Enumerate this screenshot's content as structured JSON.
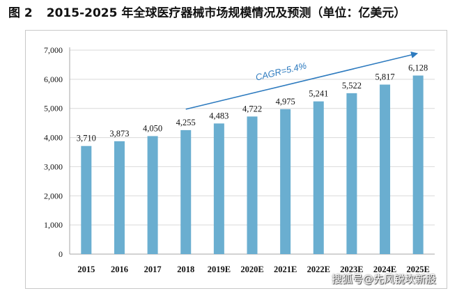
{
  "figure": {
    "label": "图 2",
    "title": "2015-2025 年全球医疗器械市场规模情况及预测（单位：亿美元）"
  },
  "watermark": "搜狐号@先风锐坎新股",
  "colors": {
    "bar": "#6aaed0",
    "arrow": "#2e7bbf",
    "cagr_text": "#2e7bbf",
    "axis": "#a6a6a6",
    "grid": "#d9d9d9",
    "text": "#111111"
  },
  "chart_data": {
    "type": "bar",
    "title": "",
    "xlabel": "",
    "ylabel": "",
    "categories": [
      "2015",
      "2016",
      "2017",
      "2018",
      "2019E",
      "2020E",
      "2021E",
      "2022E",
      "2023E",
      "2024E",
      "2025E"
    ],
    "values": [
      3710,
      3873,
      4050,
      4255,
      4483,
      4722,
      4975,
      5241,
      5522,
      5817,
      6128
    ],
    "data_labels": [
      "3,710",
      "3,873",
      "4,050",
      "4,255",
      "4,483",
      "4,722",
      "4,975",
      "5,241",
      "5,522",
      "5,817",
      "6,128"
    ],
    "ylim": [
      0,
      7000
    ],
    "yticks": [
      0,
      1000,
      2000,
      3000,
      4000,
      5000,
      6000,
      7000
    ],
    "ytick_labels": [
      "0",
      "1,000",
      "2,000",
      "3,000",
      "4,000",
      "5,000",
      "6,000",
      "7,000"
    ],
    "grid": true,
    "annotation": {
      "text": "CAGR=5.4%",
      "type": "trend-arrow"
    },
    "legend": "none"
  }
}
